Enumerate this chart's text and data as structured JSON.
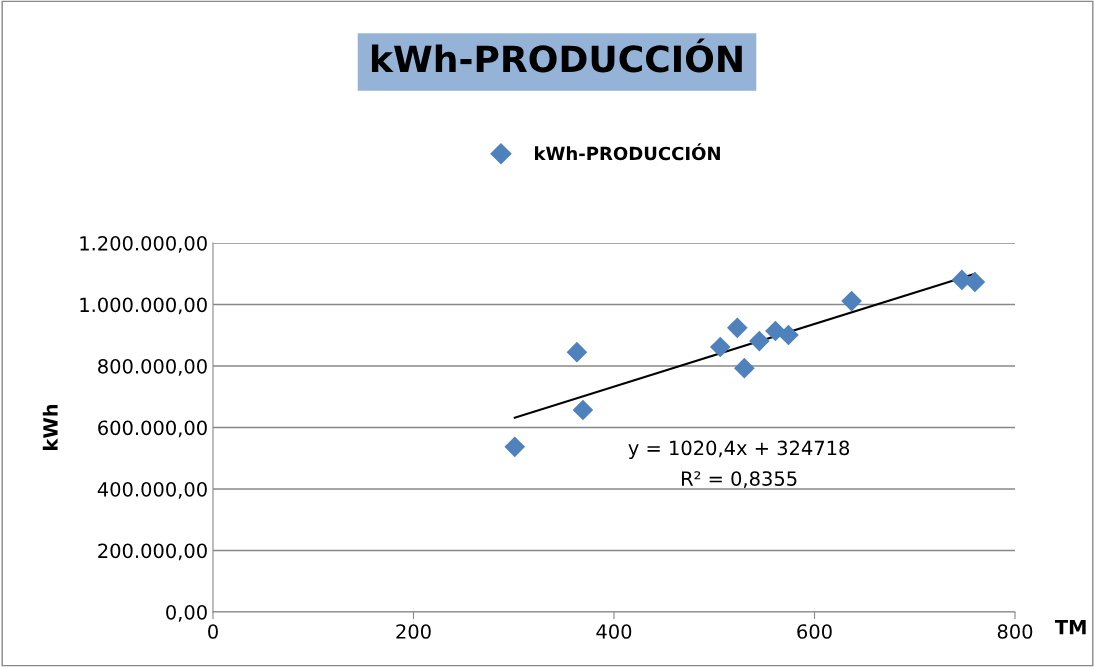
{
  "chart_data": {
    "type": "scatter",
    "title": "kWh-PRODUCCIÓN",
    "xlabel": "TM",
    "ylabel": "kWh",
    "series": [
      {
        "name": "kWh-PRODUCCIÓN",
        "color": "#4f81bd",
        "marker": "diamond",
        "x": [
          301,
          363,
          369,
          506,
          523,
          530,
          545,
          561,
          574,
          637,
          747,
          760
        ],
        "values": [
          537000,
          845000,
          657000,
          862000,
          924000,
          793000,
          881000,
          914000,
          901000,
          1011000,
          1080000,
          1073000
        ]
      },
      {
        "type": "line",
        "color": "#000000",
        "marker": "none",
        "x": [
          301,
          760
        ],
        "values": [
          632000,
          1100000
        ]
      }
    ],
    "xlim": [
      0,
      800
    ],
    "xticks": [
      0,
      200,
      400,
      600,
      800
    ],
    "ylim": [
      0,
      1200000
    ],
    "yticks": [
      {
        "value": 0,
        "label": "0,00"
      },
      {
        "value": 200000,
        "label": "200.000,00"
      },
      {
        "value": 400000,
        "label": "400.000,00"
      },
      {
        "value": 600000,
        "label": "600.000,00"
      },
      {
        "value": 800000,
        "label": "800.000,00"
      },
      {
        "value": 1000000,
        "label": "1.000.000,00"
      },
      {
        "value": 1200000,
        "label": "1.200.000,00"
      }
    ],
    "grid": "y",
    "legend": "top",
    "annotations": [
      "y = 1020,4x + 324718",
      "R² = 0,8355"
    ]
  }
}
